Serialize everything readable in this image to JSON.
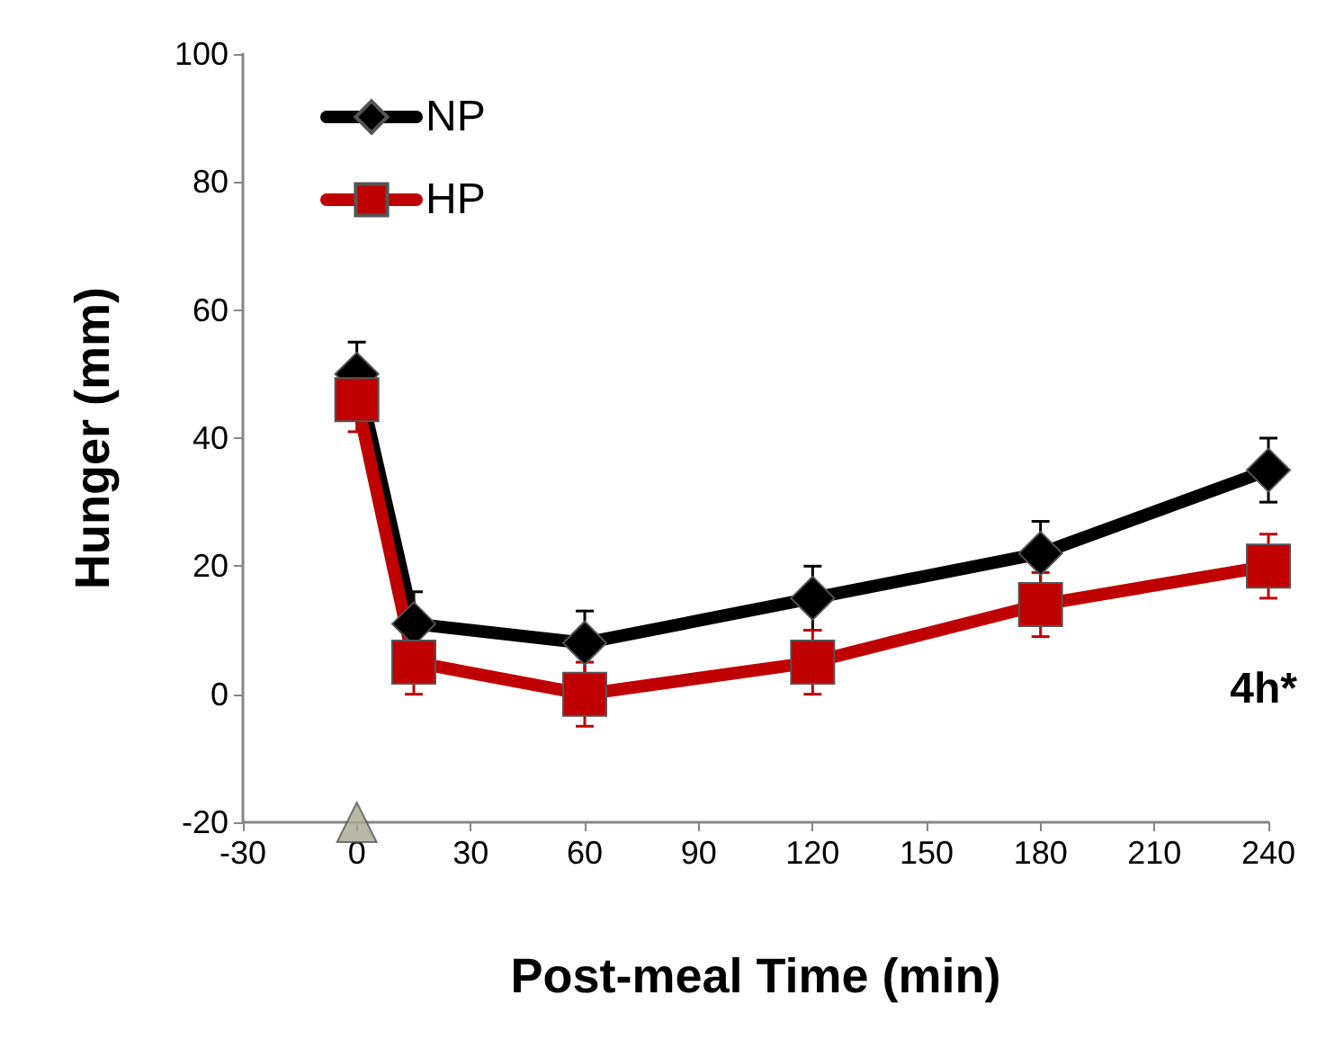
{
  "chart_data": {
    "type": "line",
    "xlabel": "Post-meal Time (min)",
    "ylabel": "Hunger (mm)",
    "xlim": [
      -30,
      240
    ],
    "xticks": [
      -30,
      0,
      30,
      60,
      90,
      120,
      150,
      180,
      210,
      240
    ],
    "ylim": [
      -20,
      100
    ],
    "yticks": [
      -20,
      0,
      20,
      40,
      60,
      80,
      100
    ],
    "grid": false,
    "legend": "top left",
    "line_style": "solid",
    "series": [
      {
        "name": "NP",
        "color": "#000000",
        "marker": "diamond",
        "x": [
          0,
          15,
          60,
          120,
          180,
          240
        ],
        "values": [
          50,
          11,
          8,
          15,
          22,
          35
        ],
        "errors": [
          5,
          5,
          5,
          5,
          5,
          5
        ]
      },
      {
        "name": "HP",
        "color": "#c00000",
        "marker": "square",
        "x": [
          0,
          15,
          60,
          120,
          180,
          240
        ],
        "values": [
          46,
          5,
          0,
          5,
          14,
          20
        ],
        "errors": [
          5,
          5,
          5,
          5,
          5,
          5
        ]
      },
      {
        "type": "scatter",
        "color": "#a8a890",
        "marker": "triangle",
        "x": [
          0
        ],
        "values": [
          -20
        ]
      }
    ],
    "annotations": [
      "4h*"
    ]
  }
}
